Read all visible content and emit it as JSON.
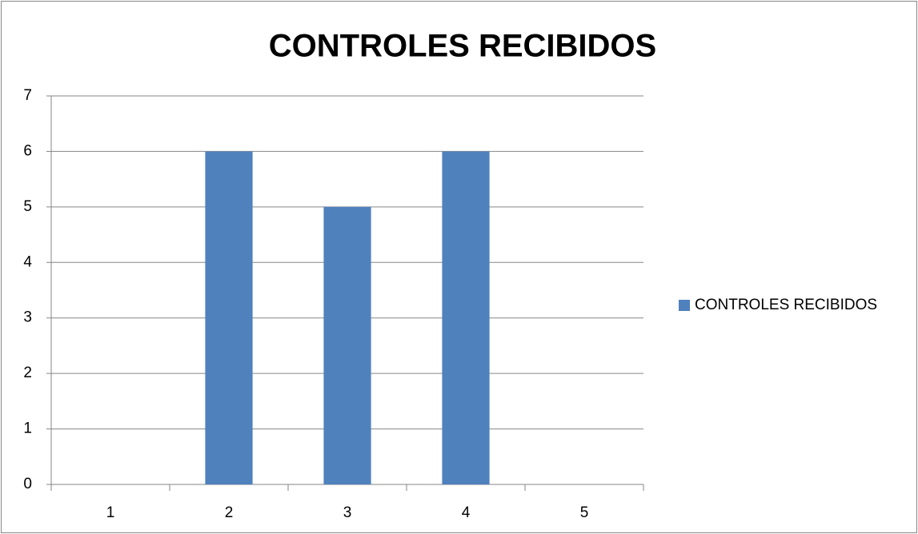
{
  "chart_data": {
    "type": "bar",
    "title": "CONTROLES RECIBIDOS",
    "categories": [
      "1",
      "2",
      "3",
      "4",
      "5"
    ],
    "series": [
      {
        "name": "CONTROLES RECIBIDOS",
        "color": "#4f81bd",
        "values": [
          0,
          6,
          5,
          6,
          0
        ]
      }
    ],
    "ylim": [
      0,
      7
    ],
    "yticks": [
      0,
      1,
      2,
      3,
      4,
      5,
      6,
      7
    ],
    "grid": true,
    "legend": "right"
  }
}
